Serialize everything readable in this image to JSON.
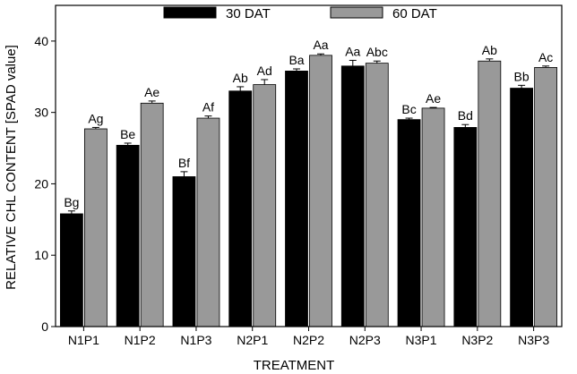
{
  "chart_data": {
    "type": "bar",
    "title": "",
    "xlabel": "TREATMENT",
    "ylabel": "RELATIVE CHL CONTENT [SPAD value]",
    "ylim": [
      0,
      45
    ],
    "yticks": [
      0,
      10,
      20,
      30,
      40
    ],
    "grid": false,
    "legend_position": "top",
    "categories": [
      "N1P1",
      "N1P2",
      "N1P3",
      "N2P1",
      "N2P2",
      "N2P3",
      "N3P1",
      "N3P2",
      "N3P3"
    ],
    "series": [
      {
        "name": "30 DAT",
        "color": "#000000",
        "values": [
          15.8,
          25.4,
          21.0,
          33.0,
          35.8,
          36.5,
          29.0,
          27.9,
          33.4
        ],
        "errors": [
          0.4,
          0.3,
          0.7,
          0.6,
          0.3,
          0.8,
          0.2,
          0.4,
          0.4
        ],
        "labels": [
          "Bg",
          "Be",
          "Bf",
          "Ab",
          "Ba",
          "Aa",
          "Bc",
          "Bd",
          "Bb"
        ]
      },
      {
        "name": "60 DAT",
        "color": "#999999",
        "values": [
          27.7,
          31.3,
          29.2,
          33.9,
          38.0,
          36.9,
          30.6,
          37.2,
          36.3
        ],
        "errors": [
          0.2,
          0.3,
          0.3,
          0.7,
          0.2,
          0.3,
          0.1,
          0.3,
          0.2
        ],
        "labels": [
          "Ag",
          "Ae",
          "Af",
          "Ad",
          "Aa",
          "Abc",
          "Ae",
          "Ab",
          "Ac"
        ]
      }
    ]
  }
}
